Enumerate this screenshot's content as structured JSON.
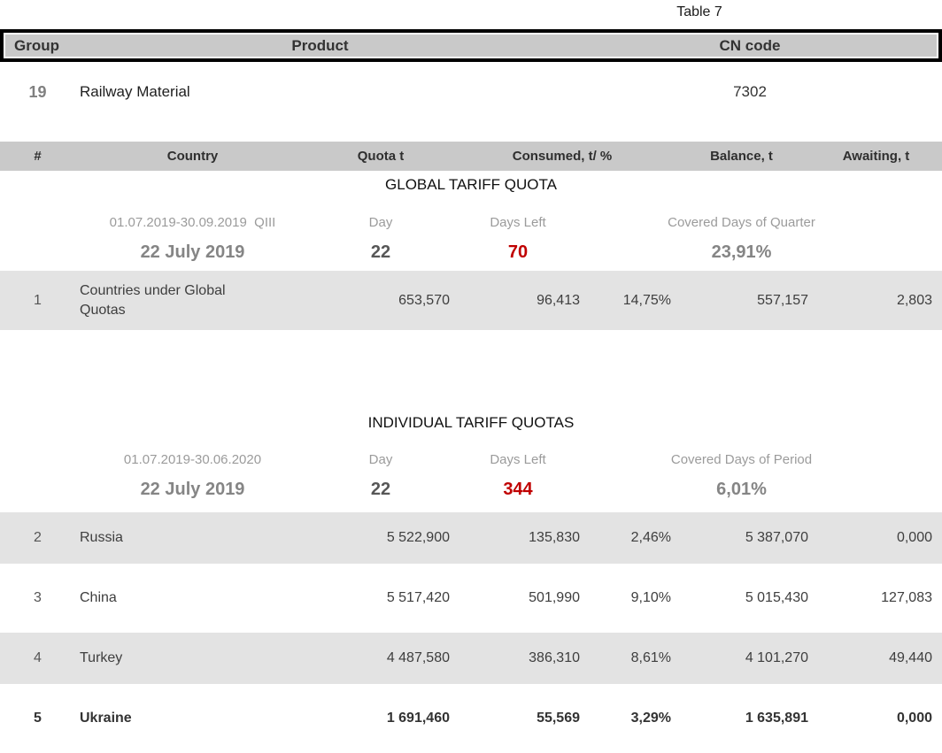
{
  "page": {
    "table_label": "Table 7"
  },
  "colors": {
    "accent_red": "#c00000",
    "header_bg": "#c9c9c9",
    "row_stripe": "#e3e3e3"
  },
  "product_table": {
    "headers": {
      "group": "Group",
      "product": "Product",
      "cn_code": "CN code"
    },
    "row": {
      "group": "19",
      "product": "Railway Material",
      "cn_code": "7302"
    }
  },
  "quota_table": {
    "columns": {
      "num": "#",
      "country": "Country",
      "quota": "Quota t",
      "consumed": "Consumed, t/ %",
      "balance": "Balance, t",
      "awaiting": "Awaiting, t"
    },
    "sections": [
      {
        "title": "GLOBAL TARIFF QUOTA",
        "period": "01.07.2019-30.09.2019  QIII",
        "labels": {
          "day": "Day",
          "days_left": "Days Left",
          "covered": "Covered Days of Quarter"
        },
        "date": "22 July 2019",
        "day": "22",
        "days_left": "70",
        "covered_pct": "23,91%",
        "rows": [
          {
            "num": "1",
            "country": "Countries under Global Quotas",
            "quota": "653,570",
            "consumed_t": "96,413",
            "consumed_pct": "14,75%",
            "balance": "557,157",
            "awaiting": "2,803",
            "shaded": true,
            "bold": false
          }
        ]
      },
      {
        "title": "INDIVIDUAL TARIFF QUOTAS",
        "period": "01.07.2019-30.06.2020",
        "labels": {
          "day": "Day",
          "days_left": "Days Left",
          "covered": "Covered Days of Period"
        },
        "date": "22 July 2019",
        "day": "22",
        "days_left": "344",
        "covered_pct": "6,01%",
        "rows": [
          {
            "num": "2",
            "country": "Russia",
            "quota": "5 522,900",
            "consumed_t": "135,830",
            "consumed_pct": "2,46%",
            "balance": "5 387,070",
            "awaiting": "0,000",
            "shaded": true,
            "bold": false
          },
          {
            "num": "3",
            "country": "China",
            "quota": "5 517,420",
            "consumed_t": "501,990",
            "consumed_pct": "9,10%",
            "balance": "5 015,430",
            "awaiting": "127,083",
            "shaded": false,
            "bold": false
          },
          {
            "num": "4",
            "country": "Turkey",
            "quota": "4 487,580",
            "consumed_t": "386,310",
            "consumed_pct": "8,61%",
            "balance": "4 101,270",
            "awaiting": "49,440",
            "shaded": true,
            "bold": false
          },
          {
            "num": "5",
            "country": "Ukraine",
            "quota": "1 691,460",
            "consumed_t": "55,569",
            "consumed_pct": "3,29%",
            "balance": "1 635,891",
            "awaiting": "0,000",
            "shaded": false,
            "bold": true
          }
        ]
      }
    ]
  }
}
